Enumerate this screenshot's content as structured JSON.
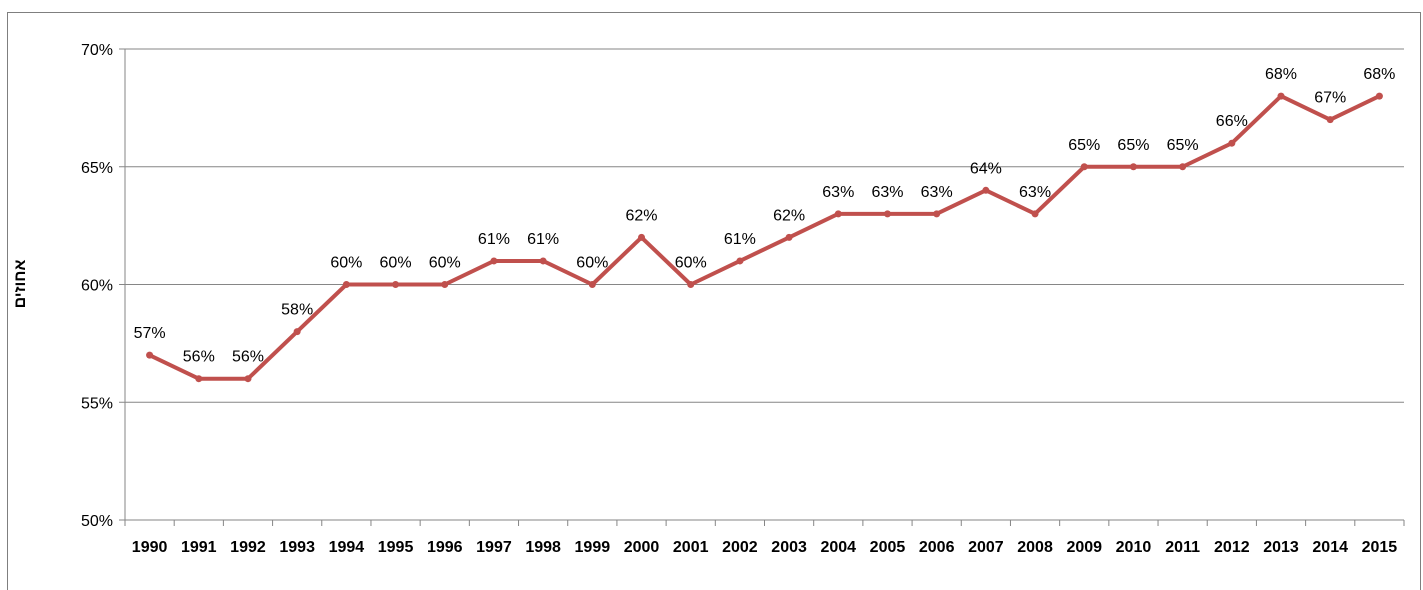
{
  "chart_data": {
    "type": "line",
    "title": "",
    "ylabel": "אחוזים",
    "xlabel": "",
    "ylim": [
      50,
      70
    ],
    "yticks": [
      50,
      55,
      60,
      65,
      70
    ],
    "y_unit_suffix": "%",
    "grid": true,
    "categories": [
      "1990",
      "1991",
      "1992",
      "1993",
      "1994",
      "1995",
      "1996",
      "1997",
      "1998",
      "1999",
      "2000",
      "2001",
      "2002",
      "2003",
      "2004",
      "2005",
      "2006",
      "2007",
      "2008",
      "2009",
      "2010",
      "2011",
      "2012",
      "2013",
      "2014",
      "2015"
    ],
    "series": [
      {
        "values": [
          57,
          56,
          56,
          58,
          60,
          60,
          60,
          61,
          61,
          60,
          62,
          60,
          61,
          62,
          63,
          63,
          63,
          64,
          63,
          65,
          65,
          65,
          66,
          68,
          67,
          68
        ],
        "color": "#C0504D"
      }
    ],
    "data_labels": [
      "57%",
      "56%",
      "56%",
      "58%",
      "60%",
      "60%",
      "60%",
      "61%",
      "61%",
      "60%",
      "62%",
      "60%",
      "61%",
      "62%",
      "63%",
      "63%",
      "63%",
      "64%",
      "63%",
      "65%",
      "65%",
      "65%",
      "66%",
      "68%",
      "67%",
      "68%"
    ],
    "colors": {
      "gridline": "#868686",
      "axis": "#868686"
    }
  }
}
